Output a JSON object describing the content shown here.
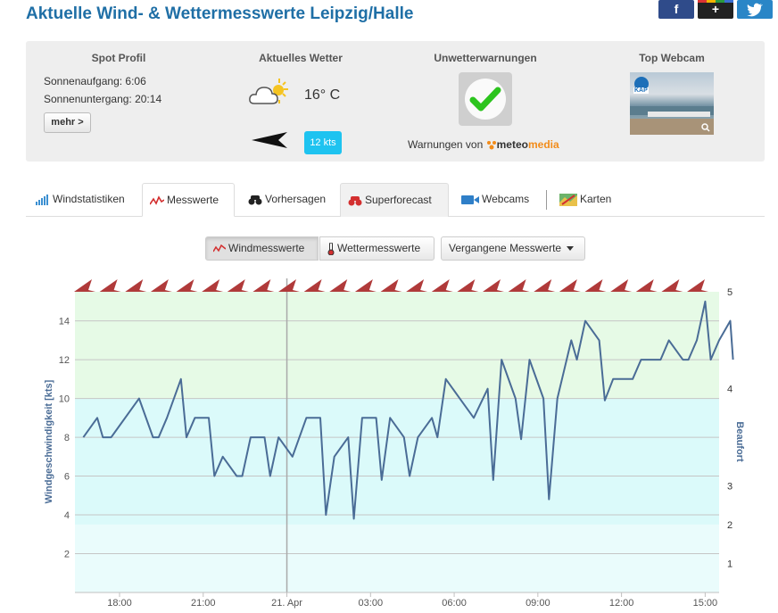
{
  "page_title": "Aktuelle Wind- & Wettermesswerte Leipzig/Halle",
  "share": {
    "facebook": "f",
    "gplus": "+"
  },
  "spot_profil": {
    "heading": "Spot Profil",
    "sunrise": "Sonnenaufgang: 6:06",
    "sunset": "Sonnenuntergang: 20:14",
    "more_button": "mehr >"
  },
  "weather": {
    "heading": "Aktuelles Wetter",
    "temperature": "16° C",
    "wind_speed": "12 kts",
    "icon": "cloud-sun-icon"
  },
  "warnings": {
    "heading": "Unwetterwarnungen",
    "status_icon": "checkmark-icon",
    "source_prefix": "Warnungen von",
    "brand_part1": "meteo",
    "brand_part2": "media"
  },
  "webcam": {
    "heading": "Top Webcam",
    "overlay_text": "KAP"
  },
  "tabs": [
    {
      "label": "Windstatistiken",
      "icon": "bar-chart-icon"
    },
    {
      "label": "Messwerte",
      "icon": "line-zigzag-icon"
    },
    {
      "label": "Vorhersagen",
      "icon": "binoculars-icon"
    },
    {
      "label": "Superforecast",
      "icon": "red-binoculars-icon"
    },
    {
      "label": "Webcams",
      "icon": "video-camera-icon"
    },
    {
      "label": "Karten",
      "icon": "map-icon"
    }
  ],
  "chart_buttons": {
    "wind": "Windmesswerte",
    "weather": "Wettermesswerte",
    "past": "Vergangene Messwerte"
  },
  "colors": {
    "accent_blue": "#1f6fa6",
    "line": "#4a6c96",
    "arrow": "#b03a3a",
    "badge": "#1ec3f0",
    "meteomedia_orange": "#f28c1a"
  },
  "chart_data": {
    "type": "line",
    "title": "",
    "ylabel": "Windgeschwindigkeit [kts]",
    "y2label": "Beaufort",
    "ylim": [
      0,
      15.5
    ],
    "yticks": [
      2,
      4,
      6,
      8,
      10,
      12,
      14
    ],
    "beaufort_ticks": [
      {
        "label": "1",
        "kts": 1.5
      },
      {
        "label": "2",
        "kts": 3.5
      },
      {
        "label": "3",
        "kts": 5.5
      },
      {
        "label": "4",
        "kts": 10.5
      },
      {
        "label": "5",
        "kts": 15.5
      }
    ],
    "beaufort_bands": [
      {
        "from": 0,
        "to": 3.5,
        "color": "#eafcfc"
      },
      {
        "from": 3.5,
        "to": 10,
        "color": "#dbfafa"
      },
      {
        "from": 10,
        "to": 15.5,
        "color": "#e6fae6"
      }
    ],
    "xlim": [
      16.4,
      39.5
    ],
    "x_ticks": [
      {
        "label": "18:00",
        "x": 18
      },
      {
        "label": "21:00",
        "x": 21
      },
      {
        "label": "21. Apr",
        "x": 24
      },
      {
        "label": "03:00",
        "x": 27
      },
      {
        "label": "06:00",
        "x": 30
      },
      {
        "label": "09:00",
        "x": 33
      },
      {
        "label": "12:00",
        "x": 36
      },
      {
        "label": "15:00",
        "x": 39
      }
    ],
    "day_separator_x": 24,
    "series": [
      {
        "points": [
          [
            16.7,
            8
          ],
          [
            17.2,
            9
          ],
          [
            17.4,
            8
          ],
          [
            17.7,
            8
          ],
          [
            18.7,
            10
          ],
          [
            19.2,
            8
          ],
          [
            19.4,
            8
          ],
          [
            19.7,
            9
          ],
          [
            20.2,
            11
          ],
          [
            20.4,
            8
          ],
          [
            20.7,
            9
          ],
          [
            21.2,
            9
          ],
          [
            21.4,
            6
          ],
          [
            21.7,
            7
          ],
          [
            22.2,
            6
          ],
          [
            22.4,
            6
          ],
          [
            22.7,
            8
          ],
          [
            23.2,
            8
          ],
          [
            23.4,
            6
          ],
          [
            23.7,
            8
          ],
          [
            24.2,
            7
          ],
          [
            24.7,
            9
          ],
          [
            25.2,
            9
          ],
          [
            25.4,
            4
          ],
          [
            25.7,
            7
          ],
          [
            26.2,
            8
          ],
          [
            26.4,
            3.8
          ],
          [
            26.7,
            9
          ],
          [
            27.2,
            9
          ],
          [
            27.4,
            5.8
          ],
          [
            27.7,
            9
          ],
          [
            28.2,
            8
          ],
          [
            28.4,
            6
          ],
          [
            28.7,
            8
          ],
          [
            29.2,
            9
          ],
          [
            29.4,
            8
          ],
          [
            29.7,
            11
          ],
          [
            30.2,
            10
          ],
          [
            30.7,
            9
          ],
          [
            31.2,
            10.5
          ],
          [
            31.4,
            5.8
          ],
          [
            31.7,
            12
          ],
          [
            32.2,
            10
          ],
          [
            32.4,
            7.9
          ],
          [
            32.7,
            12
          ],
          [
            33.2,
            10
          ],
          [
            33.4,
            4.8
          ],
          [
            33.7,
            10
          ],
          [
            34.2,
            13
          ],
          [
            34.4,
            12
          ],
          [
            34.7,
            14
          ],
          [
            35.2,
            13
          ],
          [
            35.4,
            9.9
          ],
          [
            35.7,
            11
          ],
          [
            36.2,
            11
          ],
          [
            36.4,
            11
          ],
          [
            36.7,
            12
          ],
          [
            37.2,
            12
          ],
          [
            37.4,
            12
          ],
          [
            37.7,
            13
          ],
          [
            38.2,
            12
          ],
          [
            38.4,
            12
          ],
          [
            38.7,
            13
          ],
          [
            39.0,
            15
          ],
          [
            39.2,
            12
          ],
          [
            39.5,
            13
          ],
          [
            39.9,
            14
          ],
          [
            40.0,
            12
          ]
        ]
      }
    ],
    "wind_direction_arrows": 25
  }
}
